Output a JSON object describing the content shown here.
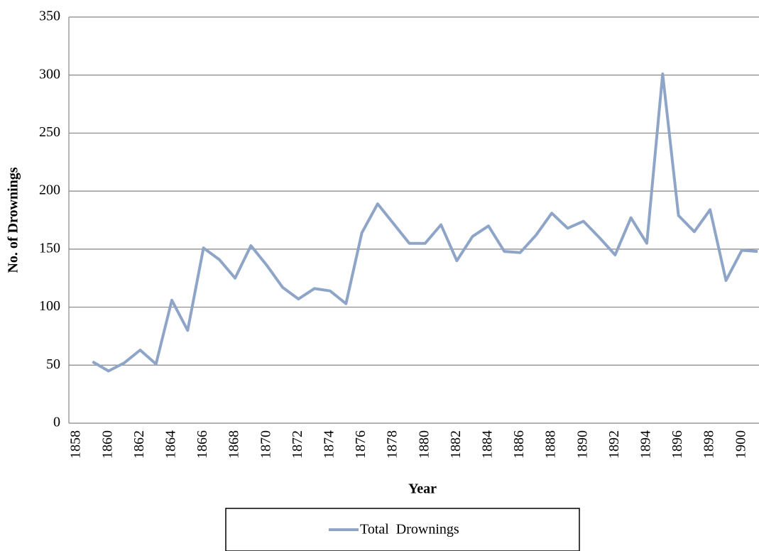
{
  "chart_data": {
    "type": "line",
    "x_label": "Year",
    "y_label": "No. of Drownings",
    "categories": [
      "1858",
      null,
      "1860",
      null,
      "1862",
      null,
      "1864",
      null,
      "1866",
      null,
      "1868",
      null,
      "1870",
      null,
      "1872",
      null,
      "1874",
      null,
      "1876",
      null,
      "1878",
      null,
      "1880",
      null,
      "1882",
      null,
      "1884",
      null,
      "1886",
      null,
      "1888",
      null,
      "1890",
      null,
      "1892",
      null,
      "1894",
      null,
      "1896",
      null,
      "1898",
      null,
      "1900",
      null
    ],
    "series": [
      {
        "name": "Total  Drownings",
        "color": "#8fa5c8",
        "values": [
          null,
          53,
          45,
          52,
          63,
          51,
          106,
          80,
          151,
          141,
          125,
          153,
          136,
          117,
          107,
          116,
          114,
          103,
          164,
          189,
          172,
          155,
          155,
          171,
          140,
          161,
          170,
          148,
          147,
          162,
          181,
          168,
          174,
          160,
          145,
          177,
          155,
          301,
          179,
          165,
          184,
          123,
          149,
          148
        ]
      }
    ],
    "ylim": [
      0,
      350
    ],
    "yticks": [
      0,
      50,
      100,
      150,
      200,
      250,
      300,
      350
    ],
    "grid": true,
    "legend": "bottom"
  }
}
